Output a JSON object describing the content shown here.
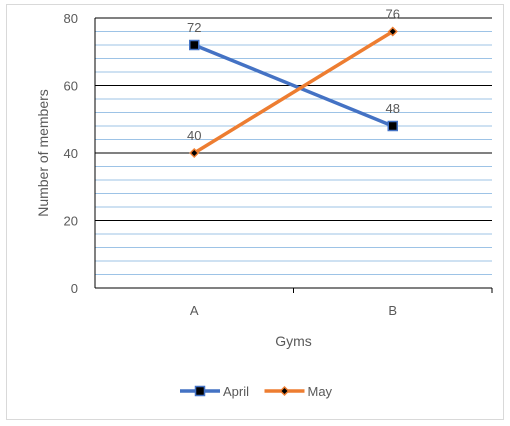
{
  "chart_data": {
    "type": "line",
    "categories": [
      "A",
      "B"
    ],
    "series": [
      {
        "name": "April",
        "values": [
          72,
          48
        ],
        "color": "#4472c4",
        "marker": "square"
      },
      {
        "name": "May",
        "values": [
          40,
          76
        ],
        "color": "#ed7d31",
        "marker": "diamond"
      }
    ],
    "xlabel": "Gyms",
    "ylabel": "Number of members",
    "ylim": [
      0,
      80
    ],
    "yticks": [
      0,
      20,
      40,
      60,
      80
    ],
    "minor_gridline_color": "#9dc3e6",
    "major_gridline_color": "#000000",
    "legend_position": "bottom",
    "data_labels": true
  }
}
